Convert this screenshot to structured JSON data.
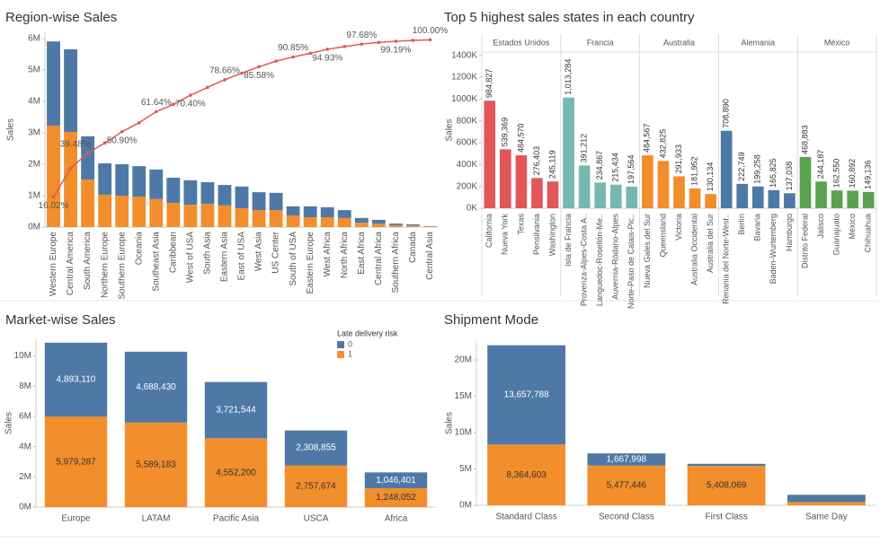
{
  "chart_data": [
    {
      "type": "pareto",
      "title": "Region-wise Sales",
      "y_label": "Sales",
      "categories": [
        "Western Europe",
        "Central America",
        "South America",
        "Northern Europe",
        "Southern Europe",
        "Oceania",
        "Southeast Asia",
        "Caribbean",
        "West of USA",
        "South Asia",
        "Eastern Asia",
        "East of USA",
        "West Asia",
        "US Center",
        "South of USA",
        "Eastern Europe",
        "West Africa",
        "North Africa",
        "East Africa",
        "Central Africa",
        "Southern Africa",
        "Canada",
        "Central Asia"
      ],
      "series": [
        {
          "color": "#4e79a7",
          "values": [
            2680000,
            2630000,
            1380000,
            1000000,
            1000000,
            970000,
            940000,
            800000,
            780000,
            690000,
            650000,
            690000,
            570000,
            550000,
            290000,
            350000,
            320000,
            250000,
            150000,
            120000,
            50000,
            40000,
            10000
          ]
        },
        {
          "color": "#f28e2b",
          "values": [
            3230000,
            3030000,
            1510000,
            1030000,
            1000000,
            970000,
            890000,
            770000,
            710000,
            740000,
            690000,
            600000,
            540000,
            540000,
            370000,
            310000,
            310000,
            290000,
            140000,
            110000,
            60000,
            50000,
            20000
          ]
        },
        {
          "type": "line",
          "axis": "y2",
          "color": "#e15759",
          "values": [
            16.02,
            31.4,
            39.48,
            44.9,
            50.9,
            55.7,
            61.64,
            65.5,
            70.4,
            74.6,
            78.66,
            82.2,
            85.58,
            88.6,
            90.85,
            92.8,
            94.93,
            96.4,
            97.68,
            98.6,
            99.19,
            99.7,
            100.0
          ],
          "value_labels": [
            "16.02%",
            null,
            "39.48%",
            null,
            "50.90%",
            null,
            "61.64%",
            null,
            "70.40%",
            null,
            "78.66%",
            null,
            "85.58%",
            null,
            "90.85%",
            null,
            "94.93%",
            null,
            "97.68%",
            null,
            "99.19%",
            null,
            "100.00%"
          ]
        }
      ],
      "ylim": [
        0,
        6200000
      ],
      "yticks": [
        {
          "value": 0,
          "label": "0M"
        },
        {
          "value": 1000000,
          "label": "1M"
        },
        {
          "value": 2000000,
          "label": "2M"
        },
        {
          "value": 3000000,
          "label": "3M"
        },
        {
          "value": 4000000,
          "label": "4M"
        },
        {
          "value": 5000000,
          "label": "5M"
        },
        {
          "value": 6000000,
          "label": "6M"
        }
      ],
      "y2lim": [
        0,
        104
      ]
    },
    {
      "type": "faceted_bar",
      "title": "Top 5 highest sales states in each country",
      "y_label": "Sales",
      "facets": [
        {
          "name": "Estados Unidos",
          "color": "#e15759",
          "categories": [
            "California",
            "Nueva York",
            "Texas",
            "Pensilvania",
            "Washington"
          ],
          "values": [
            984827,
            539369,
            484570,
            276403,
            245119
          ],
          "value_labels": [
            "984,827",
            "539,369",
            "484,570",
            "276,403",
            "245,119"
          ]
        },
        {
          "name": "Francia",
          "color": "#76b7b2",
          "categories": [
            "Isla de Francia",
            "Provenza-Alpes-Costa A..",
            "Languedoc-Rosellón-Me..",
            "Auvernia-Ródano-Alpes",
            "Norte-Paso de Calais-Pic.."
          ],
          "values": [
            1013284,
            391212,
            234867,
            215434,
            197564
          ],
          "value_labels": [
            "1,013,284",
            "391,212",
            "234,867",
            "215,434",
            "197,564"
          ]
        },
        {
          "name": "Australia",
          "color": "#f28e2b",
          "categories": [
            "Nueva Gales del Sur",
            "Queensland",
            "Victoria",
            "Australia Occidental",
            "Australia del Sur"
          ],
          "values": [
            484567,
            432825,
            291933,
            181952,
            130134
          ],
          "value_labels": [
            "484,567",
            "432,825",
            "291,933",
            "181,952",
            "130,134"
          ]
        },
        {
          "name": "Alemania",
          "color": "#4e79a7",
          "categories": [
            "Renania del Norte-West..",
            "Berlín",
            "Bavaria",
            "Baden-Wurtemberg",
            "Hamburgo"
          ],
          "values": [
            708890,
            222749,
            199258,
            165825,
            137038
          ],
          "value_labels": [
            "708,890",
            "222,749",
            "199,258",
            "165,825",
            "137,038"
          ]
        },
        {
          "name": "México",
          "color": "#59a14f",
          "categories": [
            "Distrito Federal",
            "Jalisco",
            "Guanajuato",
            "México",
            "Chihuahua"
          ],
          "values": [
            468883,
            244187,
            162550,
            160892,
            149136
          ],
          "value_labels": [
            "468,883",
            "244,187",
            "162,550",
            "160,892",
            "149,136"
          ]
        }
      ],
      "ylim": [
        0,
        1430000
      ],
      "yticks": [
        {
          "value": 0,
          "label": "0K"
        },
        {
          "value": 200000,
          "label": "200K"
        },
        {
          "value": 400000,
          "label": "400K"
        },
        {
          "value": 600000,
          "label": "600K"
        },
        {
          "value": 800000,
          "label": "800K"
        },
        {
          "value": 1000000,
          "label": "1000K"
        },
        {
          "value": 1200000,
          "label": "1200K"
        },
        {
          "value": 1400000,
          "label": "1400K"
        }
      ]
    },
    {
      "type": "stacked_bar",
      "title": "Market-wise Sales",
      "y_label": "Sales",
      "legend_title": "Late delivery risk",
      "categories": [
        "Europe",
        "LATAM",
        "Pacific Asia",
        "USCA",
        "Africa"
      ],
      "series": [
        {
          "name": "0",
          "color": "#4e79a7",
          "values": [
            4893110,
            4688430,
            3721544,
            2308855,
            1046401
          ],
          "value_labels": [
            "4,893,110",
            "4,688,430",
            "3,721,544",
            "2,308,855",
            "1,046,401"
          ]
        },
        {
          "name": "1",
          "color": "#f28e2b",
          "values": [
            5979287,
            5589183,
            4552200,
            2757674,
            1248052
          ],
          "value_labels": [
            "5,979,287",
            "5,589,183",
            "4,552,200",
            "2,757,674",
            "1,248,052"
          ]
        }
      ],
      "ylim": [
        0,
        11100000
      ],
      "yticks": [
        {
          "value": 0,
          "label": "0M"
        },
        {
          "value": 2000000,
          "label": "2M"
        },
        {
          "value": 4000000,
          "label": "4M"
        },
        {
          "value": 6000000,
          "label": "6M"
        },
        {
          "value": 8000000,
          "label": "8M"
        },
        {
          "value": 10000000,
          "label": "10M"
        }
      ]
    },
    {
      "type": "stacked_bar",
      "title": "Shipment Mode",
      "y_label": "Sales",
      "categories": [
        "Standard Class",
        "Second Class",
        "First Class",
        "Same Day"
      ],
      "series": [
        {
          "color": "#4e79a7",
          "values": [
            13657788,
            1667998,
            300000,
            1000000
          ],
          "value_labels": [
            "13,657,788",
            "1,667,998",
            null,
            null
          ]
        },
        {
          "color": "#f28e2b",
          "values": [
            8364603,
            5477446,
            5408069,
            450000
          ],
          "value_labels": [
            "8,364,603",
            "5,477,446",
            "5,408,069",
            null
          ]
        }
      ],
      "ylim": [
        0,
        22600000
      ],
      "yticks": [
        {
          "value": 0,
          "label": "0M"
        },
        {
          "value": 5000000,
          "label": "5M"
        },
        {
          "value": 10000000,
          "label": "10M"
        },
        {
          "value": 15000000,
          "label": "15M"
        },
        {
          "value": 20000000,
          "label": "20M"
        }
      ]
    }
  ]
}
